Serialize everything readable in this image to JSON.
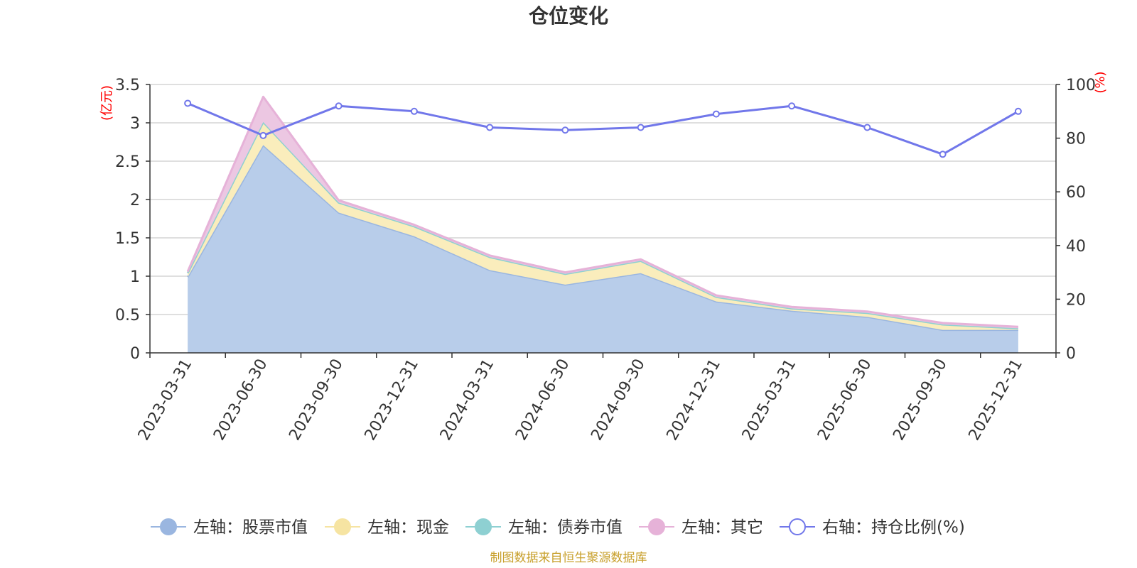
{
  "chart_data": {
    "type": "area",
    "title": "仓位变化",
    "categories": [
      "2023-03-31",
      "2023-06-30",
      "2023-09-30",
      "2023-12-31",
      "2024-03-31",
      "2024-06-30",
      "2024-09-30",
      "2024-12-31",
      "2025-03-31",
      "2025-06-30",
      "2025-09-30",
      "2025-12-31"
    ],
    "left_axis": {
      "unit": "(亿元)",
      "min": 0,
      "max": 3.5,
      "ticks": [
        "0",
        "0.5",
        "1",
        "1.5",
        "2",
        "2.5",
        "3",
        "3.5"
      ]
    },
    "right_axis": {
      "unit": "(%)",
      "min": 0,
      "max": 100,
      "ticks": [
        "0",
        "20",
        "40",
        "60",
        "80",
        "100"
      ]
    },
    "stacked_series": [
      {
        "name": "左轴：股票市值",
        "color": "#9ab6e0",
        "fill": "#b8cdea",
        "values": [
          0.99,
          2.71,
          1.83,
          1.52,
          1.08,
          0.89,
          1.04,
          0.67,
          0.55,
          0.47,
          0.3,
          0.3
        ]
      },
      {
        "name": "左轴：现金",
        "color": "#f6e4a2",
        "fill": "#faedbc",
        "values": [
          0.05,
          0.3,
          0.13,
          0.13,
          0.17,
          0.14,
          0.16,
          0.06,
          0.03,
          0.05,
          0.07,
          0.02
        ]
      },
      {
        "name": "左轴：债券市值",
        "color": "#8ed0d2",
        "fill": "#a8dcdc",
        "values": [
          0,
          0,
          0,
          0,
          0,
          0,
          0,
          0,
          0,
          0,
          0,
          0
        ]
      },
      {
        "name": "左轴：其它",
        "color": "#e6b2d8",
        "fill": "#ecc7e2",
        "values": [
          0.02,
          0.33,
          0.03,
          0.02,
          0.02,
          0.02,
          0.02,
          0.02,
          0.02,
          0.02,
          0.02,
          0.02
        ]
      }
    ],
    "line_series": {
      "name": "右轴：持仓比例(%)",
      "color": "#7177ea",
      "values": [
        93,
        81,
        92,
        90,
        84,
        83,
        84,
        89,
        92,
        84,
        74,
        90
      ]
    },
    "legend_position": "bottom",
    "grid": true
  },
  "footer": {
    "source": "制图数据来自恒生聚源数据库"
  }
}
